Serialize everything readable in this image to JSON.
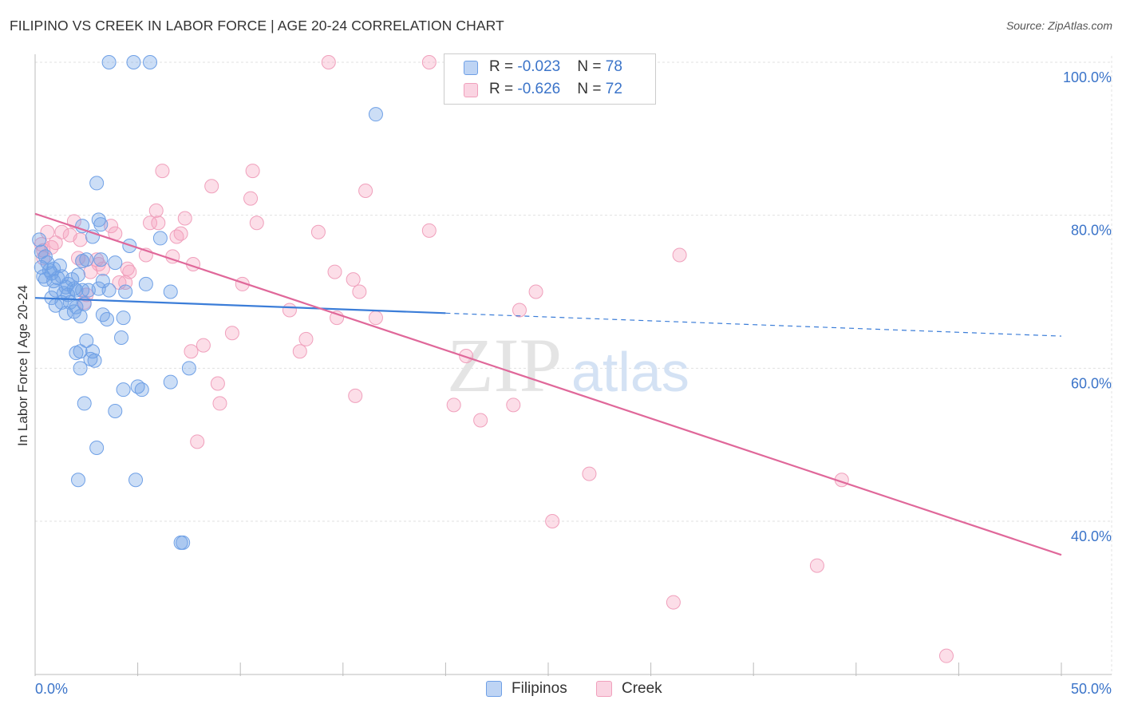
{
  "chart_data": {
    "type": "scatter",
    "title": "FILIPINO VS CREEK IN LABOR FORCE | AGE 20-24 CORRELATION CHART",
    "source": "Source: ZipAtlas.com",
    "xlabel": "",
    "ylabel": "In Labor Force | Age 20-24",
    "xlim": [
      0,
      50
    ],
    "ylim": [
      20,
      102
    ],
    "x_ticks_labels": {
      "left": "0.0%",
      "right": "50.0%"
    },
    "y_ticks": [
      40,
      60,
      80,
      100
    ],
    "y_tick_labels": [
      "40.0%",
      "60.0%",
      "80.0%",
      "100.0%"
    ],
    "grid": true,
    "watermark": "ZIPatlas",
    "legend": {
      "position": "top-center",
      "entries": [
        {
          "r_label": "R = ",
          "r_value": "-0.023",
          "n_label": "N = ",
          "n_value": "78"
        },
        {
          "r_label": "R = ",
          "r_value": "-0.626",
          "n_label": "N = ",
          "n_value": "72"
        }
      ]
    },
    "series": [
      {
        "name": "Filipinos",
        "color": "#3b7dd8",
        "fill": "rgba(110,160,230,0.35)",
        "stroke": "#6fa0e6",
        "trend": {
          "x_solid": [
            0,
            20
          ],
          "y_solid": [
            69.2,
            67.2
          ],
          "x_dashed": [
            20,
            50
          ],
          "y_dashed": [
            67.2,
            64.2
          ]
        },
        "points": [
          [
            0.2,
            76.8
          ],
          [
            0.3,
            75.2
          ],
          [
            0.3,
            73.2
          ],
          [
            0.4,
            72.0
          ],
          [
            0.5,
            74.6
          ],
          [
            0.5,
            71.6
          ],
          [
            0.6,
            73.8
          ],
          [
            0.7,
            72.8
          ],
          [
            0.8,
            72.4
          ],
          [
            0.8,
            69.2
          ],
          [
            0.9,
            71.4
          ],
          [
            0.9,
            73.0
          ],
          [
            1.0,
            70.2
          ],
          [
            1.0,
            68.2
          ],
          [
            1.1,
            71.8
          ],
          [
            1.2,
            73.4
          ],
          [
            1.3,
            68.6
          ],
          [
            1.3,
            72.0
          ],
          [
            1.4,
            69.8
          ],
          [
            1.5,
            70.6
          ],
          [
            1.5,
            67.2
          ],
          [
            1.6,
            69.6
          ],
          [
            1.7,
            68.6
          ],
          [
            1.8,
            71.6
          ],
          [
            1.9,
            67.4
          ],
          [
            1.9,
            70.4
          ],
          [
            2.0,
            70.2
          ],
          [
            2.0,
            68.0
          ],
          [
            2.1,
            72.2
          ],
          [
            2.2,
            66.8
          ],
          [
            2.3,
            70.2
          ],
          [
            2.0,
            62.0
          ],
          [
            2.2,
            62.2
          ],
          [
            2.2,
            60.0
          ],
          [
            2.3,
            74.0
          ],
          [
            2.3,
            78.6
          ],
          [
            2.4,
            68.4
          ],
          [
            2.4,
            55.4
          ],
          [
            2.5,
            74.2
          ],
          [
            2.5,
            63.6
          ],
          [
            2.6,
            70.2
          ],
          [
            2.7,
            61.2
          ],
          [
            2.8,
            62.2
          ],
          [
            2.9,
            61.0
          ],
          [
            2.8,
            77.2
          ],
          [
            3.0,
            84.2
          ],
          [
            3.0,
            49.6
          ],
          [
            3.1,
            70.4
          ],
          [
            3.1,
            79.4
          ],
          [
            3.2,
            78.8
          ],
          [
            3.2,
            74.2
          ],
          [
            3.3,
            71.4
          ],
          [
            3.3,
            67.0
          ],
          [
            3.5,
            66.4
          ],
          [
            3.6,
            100.0
          ],
          [
            3.6,
            70.2
          ],
          [
            3.9,
            54.4
          ],
          [
            3.9,
            73.8
          ],
          [
            4.2,
            64.0
          ],
          [
            4.3,
            57.2
          ],
          [
            4.3,
            66.6
          ],
          [
            4.4,
            70.0
          ],
          [
            4.6,
            76.0
          ],
          [
            4.8,
            100.0
          ],
          [
            4.9,
            45.4
          ],
          [
            5.0,
            57.6
          ],
          [
            5.2,
            57.2
          ],
          [
            5.4,
            71.0
          ],
          [
            5.6,
            100.0
          ],
          [
            6.1,
            77.0
          ],
          [
            6.6,
            70.0
          ],
          [
            6.6,
            58.2
          ],
          [
            7.1,
            37.2
          ],
          [
            7.2,
            37.2
          ],
          [
            7.5,
            60.0
          ],
          [
            16.6,
            93.2
          ],
          [
            2.1,
            45.4
          ],
          [
            1.6,
            71.0
          ]
        ]
      },
      {
        "name": "Creek",
        "color": "#e0689a",
        "fill": "rgba(245,160,190,0.35)",
        "stroke": "#f0a0bc",
        "trend": {
          "x_solid": [
            0,
            50
          ],
          "y_solid": [
            80.2,
            35.6
          ]
        },
        "points": [
          [
            0.3,
            76.2
          ],
          [
            0.4,
            75.4
          ],
          [
            0.4,
            74.4
          ],
          [
            0.6,
            77.8
          ],
          [
            0.8,
            75.8
          ],
          [
            1.0,
            76.4
          ],
          [
            1.3,
            77.8
          ],
          [
            1.7,
            77.4
          ],
          [
            1.9,
            79.2
          ],
          [
            2.1,
            74.4
          ],
          [
            2.2,
            76.8
          ],
          [
            2.3,
            74.0
          ],
          [
            2.4,
            68.6
          ],
          [
            2.5,
            69.6
          ],
          [
            2.7,
            72.6
          ],
          [
            3.0,
            74.2
          ],
          [
            3.1,
            73.6
          ],
          [
            3.3,
            73.0
          ],
          [
            3.7,
            78.6
          ],
          [
            3.9,
            77.6
          ],
          [
            4.1,
            71.2
          ],
          [
            4.4,
            71.2
          ],
          [
            4.5,
            73.0
          ],
          [
            4.6,
            72.6
          ],
          [
            5.4,
            74.8
          ],
          [
            5.6,
            79.0
          ],
          [
            5.9,
            80.6
          ],
          [
            6.0,
            79.0
          ],
          [
            6.2,
            85.8
          ],
          [
            6.7,
            74.6
          ],
          [
            6.9,
            77.2
          ],
          [
            7.1,
            77.6
          ],
          [
            7.3,
            79.6
          ],
          [
            7.6,
            62.2
          ],
          [
            7.7,
            73.6
          ],
          [
            7.9,
            50.4
          ],
          [
            8.2,
            63.0
          ],
          [
            8.6,
            83.8
          ],
          [
            8.9,
            58.0
          ],
          [
            9.0,
            55.4
          ],
          [
            9.6,
            64.6
          ],
          [
            10.1,
            71.0
          ],
          [
            10.5,
            82.2
          ],
          [
            10.6,
            85.8
          ],
          [
            10.8,
            79.0
          ],
          [
            12.4,
            67.6
          ],
          [
            12.9,
            62.2
          ],
          [
            13.2,
            63.8
          ],
          [
            13.8,
            77.8
          ],
          [
            14.3,
            100.0
          ],
          [
            14.6,
            72.6
          ],
          [
            14.7,
            66.6
          ],
          [
            15.5,
            71.6
          ],
          [
            15.6,
            56.4
          ],
          [
            15.8,
            70.0
          ],
          [
            16.1,
            83.2
          ],
          [
            16.6,
            66.6
          ],
          [
            19.2,
            100.0
          ],
          [
            19.2,
            78.0
          ],
          [
            20.4,
            55.2
          ],
          [
            21.0,
            61.6
          ],
          [
            21.7,
            53.2
          ],
          [
            23.3,
            55.2
          ],
          [
            23.6,
            67.6
          ],
          [
            24.4,
            70.0
          ],
          [
            25.2,
            40.0
          ],
          [
            27.0,
            46.2
          ],
          [
            31.1,
            29.4
          ],
          [
            31.4,
            74.8
          ],
          [
            38.1,
            34.2
          ],
          [
            39.3,
            45.4
          ],
          [
            44.4,
            22.4
          ]
        ]
      }
    ]
  }
}
